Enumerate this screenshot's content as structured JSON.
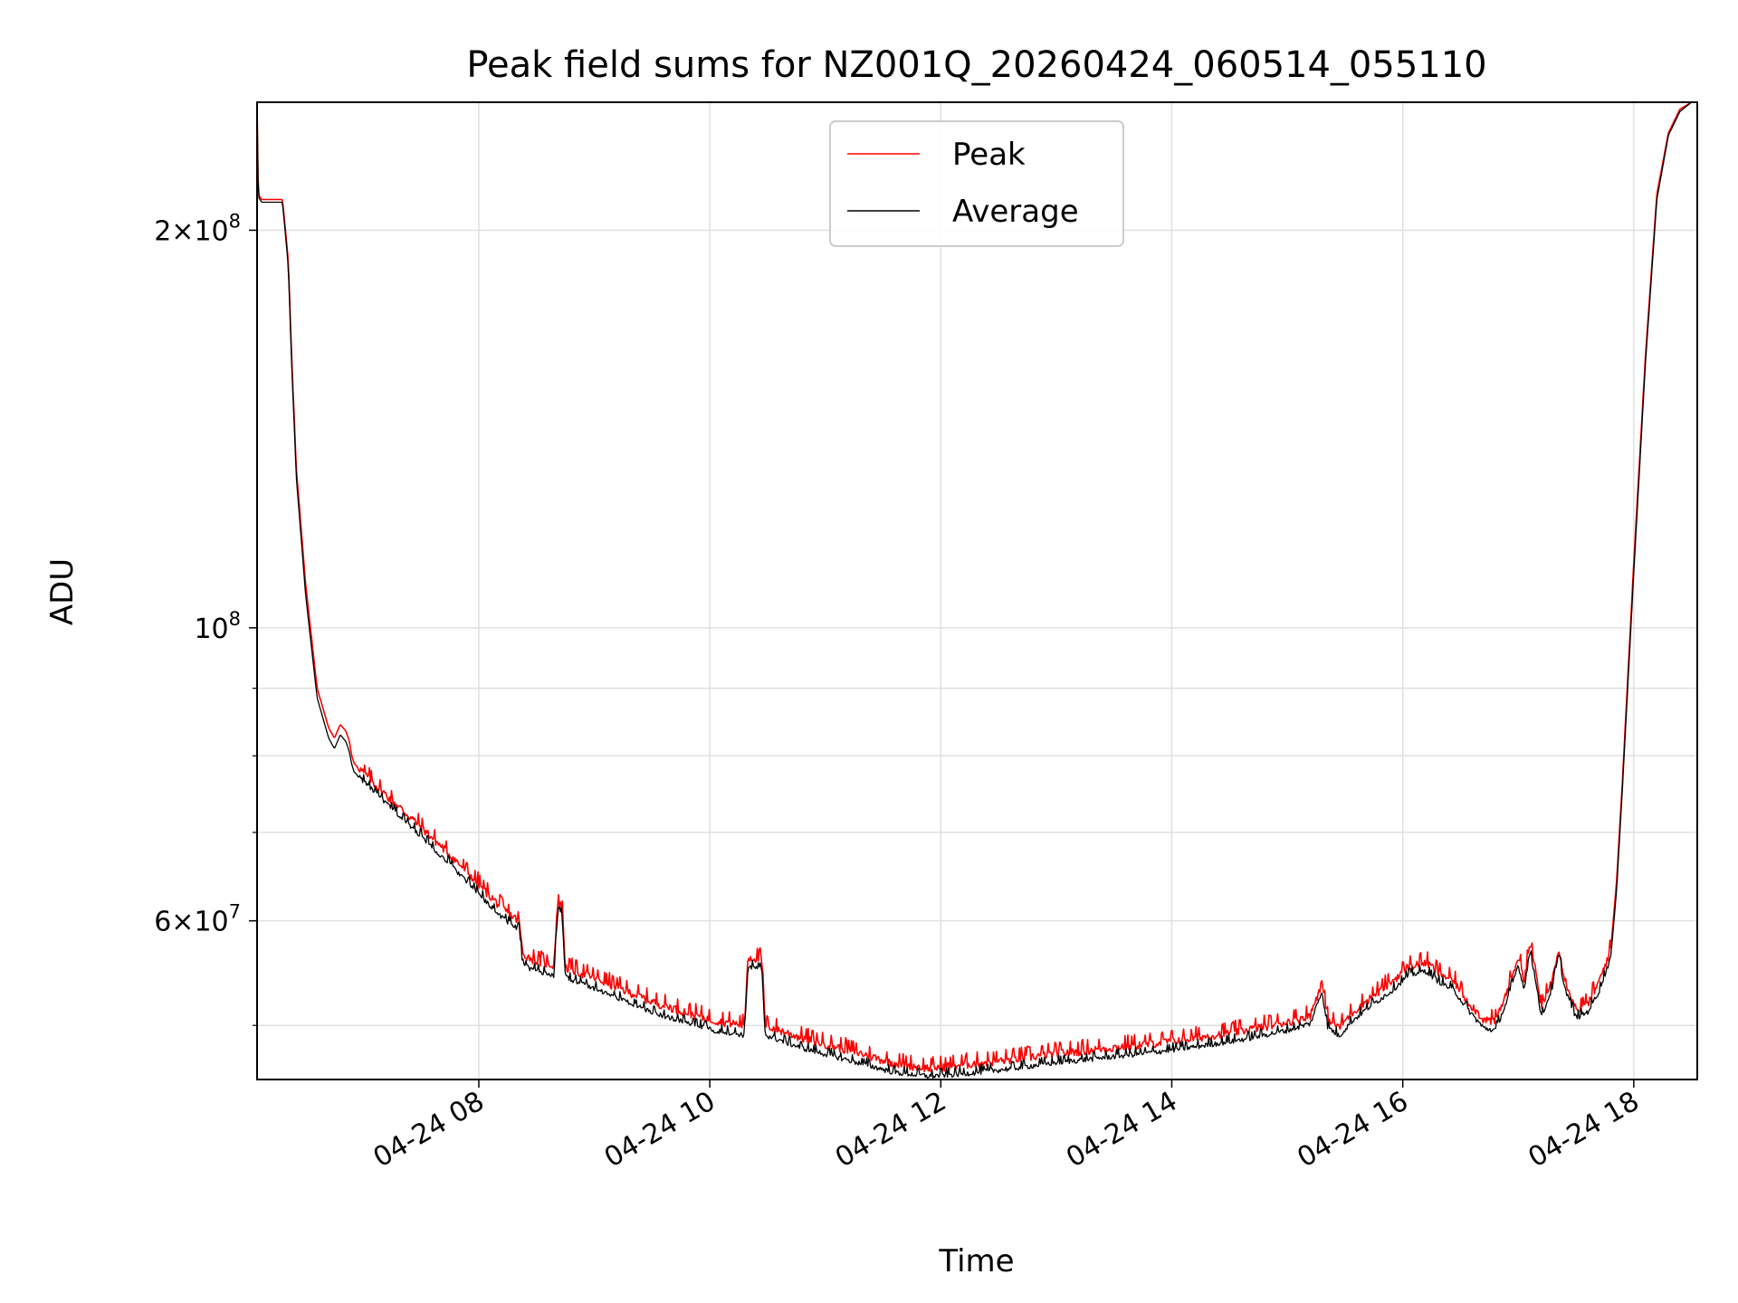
{
  "chart_data": {
    "type": "line",
    "title": "Peak field sums for NZ001Q_20260424_060514_055110",
    "xlabel": "Time",
    "ylabel": "ADU",
    "yscale": "log",
    "xlim": [
      6.08,
      18.55
    ],
    "ylim": [
      45500000,
      250000000
    ],
    "x_ticks": [
      {
        "value": 8,
        "label": "04-24 08"
      },
      {
        "value": 10,
        "label": "04-24 10"
      },
      {
        "value": 12,
        "label": "04-24 12"
      },
      {
        "value": 14,
        "label": "04-24 14"
      },
      {
        "value": 16,
        "label": "04-24 16"
      },
      {
        "value": 18,
        "label": "04-24 18"
      }
    ],
    "y_major_ticks": [
      {
        "value": 200000000,
        "base": "2×10",
        "exp": "8"
      },
      {
        "value": 100000000,
        "base": "10",
        "exp": "8"
      },
      {
        "value": 60000000,
        "base": "6×10",
        "exp": "7"
      }
    ],
    "y_minor_gridlines": [
      50000000,
      70000000,
      80000000,
      90000000
    ],
    "grid": true,
    "legend": "upper-center",
    "colors": {
      "peak": "#ff0000",
      "average": "#000000",
      "grid": "#e0e0e0"
    },
    "series": [
      {
        "name": "Peak",
        "color": "#ff0000",
        "x": [
          6.08,
          6.09,
          6.12,
          6.3,
          6.35,
          6.38,
          6.42,
          6.5,
          6.6,
          6.7,
          6.75,
          6.8,
          6.85,
          6.88,
          6.9,
          6.92,
          7.0,
          7.2,
          7.5,
          7.8,
          8.0,
          8.2,
          8.35,
          8.38,
          8.5,
          8.65,
          8.68,
          8.72,
          8.75,
          9.0,
          9.5,
          10.0,
          10.3,
          10.33,
          10.45,
          10.48,
          10.8,
          11.2,
          11.6,
          11.9,
          12.2,
          12.6,
          13.0,
          13.4,
          13.8,
          14.2,
          14.6,
          15.0,
          15.2,
          15.3,
          15.35,
          15.45,
          15.55,
          15.7,
          15.9,
          16.05,
          16.2,
          16.3,
          16.45,
          16.55,
          16.7,
          16.8,
          16.9,
          17.0,
          17.05,
          17.1,
          17.15,
          17.2,
          17.3,
          17.35,
          17.4,
          17.5,
          17.6,
          17.7,
          17.8,
          17.85,
          17.9,
          18.0,
          18.1,
          18.2,
          18.3,
          18.4,
          18.5,
          18.55
        ],
        "values": [
          250000000,
          213000000,
          211000000,
          211000000,
          190000000,
          160000000,
          132000000,
          108000000,
          90000000,
          84000000,
          82500000,
          84500000,
          83500000,
          82000000,
          80000000,
          79000000,
          77500000,
          74500000,
          70500000,
          66500000,
          63800000,
          61200000,
          59800000,
          56500000,
          55800000,
          55400000,
          61500000,
          61800000,
          55200000,
          54200000,
          52000000,
          50400000,
          49900000,
          56200000,
          56000000,
          49900000,
          48800000,
          47800000,
          46700000,
          46300000,
          46600000,
          47000000,
          47500000,
          47900000,
          48300000,
          48800000,
          49400000,
          50200000,
          50800000,
          53800000,
          50500000,
          49700000,
          50900000,
          52200000,
          53800000,
          55300000,
          55700000,
          54800000,
          53800000,
          52200000,
          50400000,
          50200000,
          52800000,
          56300000,
          54000000,
          57600000,
          55000000,
          51300000,
          54300000,
          57300000,
          54200000,
          51300000,
          51800000,
          53800000,
          57000000,
          64000000,
          76000000,
          112000000,
          160000000,
          213000000,
          237000000,
          247000000,
          250000000,
          250000000
        ]
      },
      {
        "name": "Average",
        "color": "#000000",
        "x": [
          6.08,
          6.09,
          6.12,
          6.3,
          6.35,
          6.38,
          6.42,
          6.5,
          6.6,
          6.7,
          6.75,
          6.8,
          6.85,
          6.88,
          6.9,
          6.92,
          7.0,
          7.2,
          7.5,
          7.8,
          8.0,
          8.2,
          8.35,
          8.38,
          8.5,
          8.65,
          8.68,
          8.72,
          8.75,
          9.0,
          9.5,
          10.0,
          10.3,
          10.33,
          10.45,
          10.48,
          10.8,
          11.2,
          11.6,
          11.9,
          12.2,
          12.6,
          13.0,
          13.4,
          13.8,
          14.2,
          14.6,
          15.0,
          15.2,
          15.3,
          15.35,
          15.45,
          15.55,
          15.7,
          15.9,
          16.05,
          16.2,
          16.3,
          16.45,
          16.55,
          16.7,
          16.8,
          16.9,
          17.0,
          17.05,
          17.1,
          17.15,
          17.2,
          17.3,
          17.35,
          17.4,
          17.5,
          17.6,
          17.7,
          17.8,
          17.85,
          17.9,
          18.0,
          18.1,
          18.2,
          18.3,
          18.4,
          18.5,
          18.55
        ],
        "values": [
          250000000,
          212000000,
          210000000,
          210000000,
          188000000,
          158000000,
          130000000,
          106000000,
          88500000,
          82500000,
          81000000,
          83000000,
          82000000,
          80500000,
          78800000,
          77800000,
          76500000,
          73500000,
          69500000,
          65500000,
          62800000,
          60300000,
          59000000,
          55500000,
          54900000,
          54500000,
          60500000,
          60800000,
          54300000,
          53300000,
          51100000,
          49600000,
          49100000,
          55300000,
          55100000,
          49100000,
          48000000,
          47000000,
          46000000,
          45700000,
          45900000,
          46300000,
          46800000,
          47200000,
          47600000,
          48100000,
          48700000,
          49500000,
          50100000,
          53000000,
          49800000,
          49000000,
          50200000,
          51500000,
          53000000,
          54500000,
          54900000,
          54000000,
          53000000,
          51500000,
          49700000,
          49500000,
          52000000,
          55500000,
          53200000,
          56800000,
          54200000,
          50600000,
          53500000,
          56500000,
          53400000,
          50600000,
          51100000,
          53000000,
          56200000,
          63000000,
          75000000,
          110000000,
          158000000,
          211000000,
          236000000,
          246000000,
          250000000,
          250000000
        ]
      }
    ]
  }
}
